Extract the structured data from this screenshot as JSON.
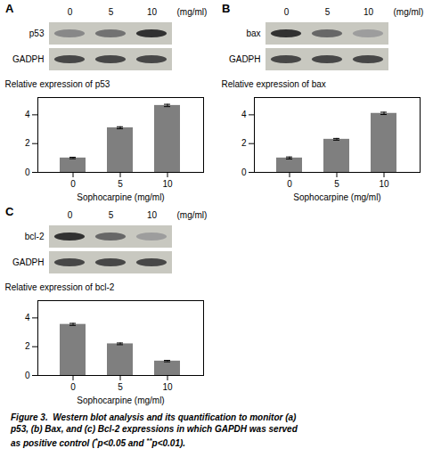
{
  "chart_data": [
    {
      "type": "bar",
      "title": "A",
      "categories": [
        "0",
        "5",
        "10"
      ],
      "values": [
        1.0,
        3.1,
        4.65
      ],
      "errors": [
        0.05,
        0.07,
        0.08
      ],
      "xlabel": "Sophocarpine (mg/ml)",
      "ylabel": "Relative expression of p53",
      "ylim": [
        0,
        5.2
      ],
      "yticks": [
        0,
        2,
        4
      ],
      "color": "#7f7f7f",
      "blot": {
        "protein": "p53",
        "loading_control": "GADPH",
        "lane_labels": [
          "0",
          "5",
          "10"
        ],
        "unit_label": "(mg/ml)",
        "band_intensities_top": [
          0.55,
          0.65,
          0.95
        ],
        "band_intensities_bottom": [
          0.85,
          0.85,
          0.85
        ],
        "color": "#c8c8c0"
      }
    },
    {
      "type": "bar",
      "title": "B",
      "categories": [
        "0",
        "5",
        "10"
      ],
      "values": [
        1.0,
        2.3,
        4.1
      ],
      "errors": [
        0.07,
        0.06,
        0.08
      ],
      "xlabel": "Sophocarpine (mg/ml)",
      "ylabel": "Relative expression of bax",
      "ylim": [
        0,
        5.2
      ],
      "yticks": [
        0,
        2,
        4
      ],
      "color": "#7f7f7f",
      "blot": {
        "protein": "bax",
        "loading_control": "GADPH",
        "lane_labels": [
          "0",
          "5",
          "10"
        ],
        "unit_label": "(mg/ml)",
        "band_intensities_top": [
          0.95,
          0.7,
          0.45
        ],
        "band_intensities_bottom": [
          0.85,
          0.85,
          0.85
        ],
        "color": "#c8c8c0"
      }
    },
    {
      "type": "bar",
      "title": "C",
      "categories": [
        "0",
        "5",
        "10"
      ],
      "values": [
        3.55,
        2.2,
        1.0
      ],
      "errors": [
        0.07,
        0.06,
        0.05
      ],
      "xlabel": "Sophocarpine (mg/ml)",
      "ylabel": "Relative expression of bcl-2",
      "ylim": [
        0,
        5.2
      ],
      "yticks": [
        0,
        2,
        4
      ],
      "color": "#7f7f7f",
      "blot": {
        "protein": "bcl-2",
        "loading_control": "GADPH",
        "lane_labels": [
          "0",
          "5",
          "10"
        ],
        "unit_label": "(mg/ml)",
        "band_intensities_top": [
          0.95,
          0.7,
          0.45
        ],
        "band_intensities_bottom": [
          0.85,
          0.85,
          0.85
        ],
        "color": "#c8c8c0"
      }
    }
  ],
  "caption": [
    [
      {
        "text": "Figure 3.  Western blot analysis and its quantification to monitor (a)"
      }
    ],
    [
      {
        "text": "p53, (b) Bax, and (c) Bcl-2 expressions in which GAPDH was served"
      }
    ],
    [
      {
        "text": "as positive control ("
      },
      {
        "text": "*",
        "superscript": true
      },
      {
        "text": "p<0.05 and "
      },
      {
        "text": "**",
        "superscript": true
      },
      {
        "text": "p<0.01)."
      }
    ]
  ]
}
